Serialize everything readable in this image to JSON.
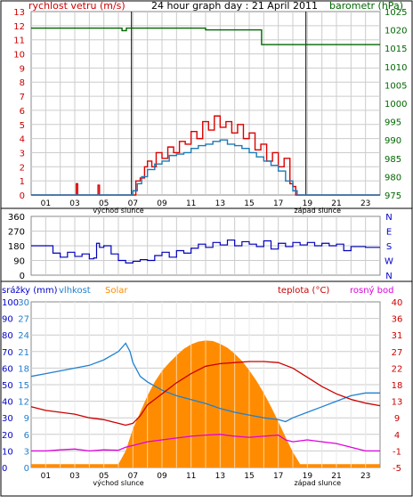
{
  "header": {
    "title": "24 hour graph day : 21 April 2011",
    "left_label": "rychlost vetru (m/s)",
    "right_label": "barometr (hPa)"
  },
  "colors": {
    "wind_gust": "#dd0000",
    "wind_avg": "#1a7ab5",
    "barometer": "#006600",
    "direction": "#0000bb",
    "humidity": "#2080d0",
    "solar": "#ff8c00",
    "temperature": "#cc0000",
    "dewpoint": "#dd00dd",
    "axis_blue": "#0000cc",
    "grid": "#cccccc"
  },
  "chart_data": [
    {
      "type": "line",
      "name": "wind-barometer",
      "title": "24 hour graph day : 21 April 2011",
      "ylabel_left": "rychlost vetru (m/s)",
      "ylabel_right": "barometr (hPa)",
      "x_ticks": [
        "01",
        "03",
        "05",
        "07",
        "09",
        "11",
        "13",
        "15",
        "17",
        "19",
        "21",
        "23"
      ],
      "x_annotations": [
        {
          "label": "východ slunce",
          "x": 6.0
        },
        {
          "label": "západ slunce",
          "x": 19.7
        }
      ],
      "sunrise_sunset_lines": [
        6.9,
        18.9
      ],
      "ylim_left": [
        0,
        13
      ],
      "ylim_right": [
        975,
        1025
      ],
      "y_ticks_left": [
        "0",
        "1",
        "2",
        "3",
        "4",
        "5",
        "6",
        "7",
        "8",
        "9",
        "10",
        "11",
        "12",
        "13"
      ],
      "y_ticks_right": [
        "975",
        "980",
        "985",
        "990",
        "995",
        "1000",
        "1005",
        "1010",
        "1015",
        "1020",
        "1025"
      ],
      "series": [
        {
          "axis": "right",
          "x": [
            0,
            6.2,
            6.25,
            6.5,
            6.55,
            8.0,
            12.0,
            15.8,
            15.85,
            24
          ],
          "values": [
            1020.5,
            1020.5,
            1019.8,
            1019.8,
            1020.5,
            1020.5,
            1020.0,
            1020.0,
            1016.0,
            1016.0
          ]
        },
        {
          "axis": "left",
          "x": [
            0,
            3.0,
            3.1,
            3.2,
            4.5,
            4.6,
            4.7,
            7.0,
            7.2,
            7.5,
            7.8,
            8.0,
            8.3,
            8.6,
            9.0,
            9.4,
            9.8,
            10.2,
            10.6,
            11.0,
            11.4,
            11.8,
            12.2,
            12.6,
            13.0,
            13.4,
            13.8,
            14.2,
            14.6,
            15.0,
            15.4,
            15.8,
            16.2,
            16.6,
            17.0,
            17.4,
            17.8,
            18.0,
            18.2,
            18.5,
            24
          ],
          "values": [
            0,
            0,
            0.8,
            0,
            0,
            0.7,
            0,
            0,
            1.0,
            1.2,
            2.0,
            2.4,
            2.0,
            3.0,
            2.6,
            3.4,
            3.0,
            3.8,
            3.6,
            4.5,
            4.0,
            5.2,
            4.6,
            5.6,
            4.8,
            5.2,
            4.4,
            5.0,
            4.0,
            4.4,
            3.2,
            3.6,
            2.4,
            3.0,
            2.0,
            2.6,
            0.8,
            0.6,
            0,
            0,
            0
          ]
        },
        {
          "axis": "left",
          "x": [
            0,
            6.8,
            7.0,
            7.3,
            7.6,
            8.0,
            8.5,
            9.0,
            9.5,
            10.0,
            10.5,
            11.0,
            11.5,
            12.0,
            12.5,
            13.0,
            13.5,
            14.0,
            14.5,
            15.0,
            15.5,
            16.0,
            16.5,
            17.0,
            17.5,
            18.0,
            18.3,
            24
          ],
          "values": [
            0,
            0,
            0.3,
            0.8,
            1.3,
            1.8,
            2.2,
            2.4,
            2.8,
            2.9,
            3.0,
            3.3,
            3.5,
            3.6,
            3.8,
            3.9,
            3.6,
            3.5,
            3.3,
            3.0,
            2.7,
            2.4,
            2.1,
            1.7,
            1.0,
            0.3,
            0,
            0
          ]
        }
      ]
    },
    {
      "type": "line",
      "name": "wind-direction",
      "ylim": [
        0,
        360
      ],
      "y_ticks": [
        "0",
        "90",
        "180",
        "270",
        "360"
      ],
      "right_ticks": [
        "N",
        "W",
        "S",
        "E",
        "N"
      ],
      "series": [
        {
          "x": [
            0,
            0.5,
            1.0,
            1.5,
            2.0,
            2.5,
            3.0,
            3.5,
            4.0,
            4.3,
            4.5,
            4.7,
            5.0,
            5.5,
            6.0,
            6.5,
            7.0,
            7.5,
            8.0,
            8.5,
            9.0,
            9.5,
            10.0,
            10.5,
            11.0,
            11.5,
            12.0,
            12.5,
            13.0,
            13.5,
            14.0,
            14.5,
            15.0,
            15.5,
            16.0,
            16.5,
            17.0,
            17.5,
            18.0,
            18.5,
            19.0,
            19.5,
            20.0,
            20.5,
            21.0,
            21.5,
            22.0,
            23.0,
            24.0
          ],
          "values": [
            180,
            180,
            180,
            135,
            110,
            140,
            115,
            130,
            100,
            105,
            195,
            170,
            180,
            130,
            90,
            75,
            85,
            95,
            90,
            120,
            140,
            110,
            150,
            135,
            165,
            190,
            170,
            200,
            185,
            215,
            180,
            205,
            190,
            175,
            210,
            160,
            195,
            175,
            200,
            185,
            200,
            180,
            195,
            180,
            190,
            150,
            175,
            170,
            170
          ]
        }
      ]
    },
    {
      "type": "area",
      "name": "precip-humidity-solar-temp",
      "legend_left": [
        "srážky (mm)",
        "vlhkost",
        "Solar"
      ],
      "legend_right": [
        "teplota (°C)",
        "rosný bod"
      ],
      "y_ticks_precip": [
        "0",
        "10",
        "20",
        "30",
        "40",
        "50",
        "60",
        "70",
        "80",
        "90",
        "100"
      ],
      "y_ticks_humidity": [
        "0",
        "3",
        "6",
        "9",
        "12",
        "15",
        "18",
        "21",
        "24",
        "27",
        "30"
      ],
      "y_ticks_temp": [
        "-5",
        "-1",
        "4",
        "9",
        "13",
        "18",
        "22",
        "27",
        "31",
        "36",
        "40"
      ],
      "ylim_humidity": [
        0,
        30
      ],
      "ylim_temp": [
        -5,
        40
      ],
      "series": [
        {
          "name": "Solar",
          "axis": "humidity",
          "x": [
            0,
            6.0,
            6.5,
            7.0,
            7.5,
            8.0,
            8.5,
            9.0,
            9.5,
            10.0,
            10.5,
            11.0,
            11.5,
            12.0,
            12.5,
            13.0,
            13.5,
            14.0,
            14.5,
            15.0,
            15.5,
            16.0,
            16.5,
            17.0,
            17.5,
            18.0,
            18.5,
            24
          ],
          "values": [
            0.6,
            0.6,
            3,
            7,
            10,
            13,
            15.5,
            17.5,
            19,
            20.3,
            21.5,
            22.3,
            22.8,
            23.0,
            22.9,
            22.4,
            21.7,
            20.6,
            19.3,
            17.6,
            15.7,
            13.5,
            11.0,
            8.3,
            5.5,
            2.8,
            0.6,
            0.6
          ]
        },
        {
          "name": "vlhkost",
          "axis": "humidity",
          "x": [
            0,
            1,
            2,
            3,
            4,
            5,
            6,
            6.5,
            6.8,
            7.0,
            7.5,
            8.0,
            9.0,
            10.0,
            11.0,
            12.0,
            13.0,
            14.0,
            15.0,
            16.0,
            17.0,
            17.5,
            18.0,
            19.0,
            20.0,
            21.0,
            22.0,
            23.0,
            24.0
          ],
          "values": [
            16.5,
            17.0,
            17.5,
            18.0,
            18.5,
            19.5,
            21.0,
            22.5,
            21.0,
            19.0,
            16.5,
            15.5,
            14.0,
            13.0,
            12.3,
            11.6,
            10.7,
            10.0,
            9.5,
            9.0,
            8.7,
            8.3,
            9.0,
            10.0,
            11.0,
            12.0,
            13.0,
            13.5,
            13.5
          ]
        },
        {
          "name": "teplota",
          "axis": "temp",
          "x": [
            0,
            1,
            2,
            3,
            4,
            5,
            6,
            6.5,
            7.0,
            7.5,
            8,
            9,
            10,
            11,
            12,
            13,
            14,
            15,
            16,
            17,
            18,
            19,
            20,
            21,
            22,
            23,
            24
          ],
          "values": [
            11.5,
            10.5,
            10.0,
            9.5,
            8.5,
            8.0,
            7.0,
            6.5,
            7.0,
            9.0,
            12.0,
            15.0,
            18.0,
            20.5,
            22.5,
            23.2,
            23.5,
            23.8,
            23.8,
            23.5,
            22.0,
            19.5,
            17.0,
            15.0,
            13.5,
            12.5,
            11.8
          ]
        },
        {
          "name": "rosný bod",
          "axis": "temp",
          "x": [
            0,
            1,
            2,
            3,
            4,
            5,
            6,
            6.5,
            7.0,
            8.0,
            9.0,
            10.0,
            11.0,
            12.0,
            13.0,
            14.0,
            15.0,
            16.0,
            17.0,
            17.5,
            18.0,
            19.0,
            20.0,
            21.0,
            22.0,
            23.0,
            24.0
          ],
          "values": [
            -0.5,
            -0.5,
            -0.2,
            0,
            -0.5,
            -0.2,
            -0.3,
            0.5,
            1.0,
            2.0,
            2.5,
            3.0,
            3.5,
            3.8,
            4.0,
            3.5,
            3.2,
            3.5,
            3.8,
            2.5,
            2.0,
            2.5,
            2.0,
            1.5,
            0.5,
            -0.5,
            -0.5
          ]
        }
      ]
    }
  ]
}
